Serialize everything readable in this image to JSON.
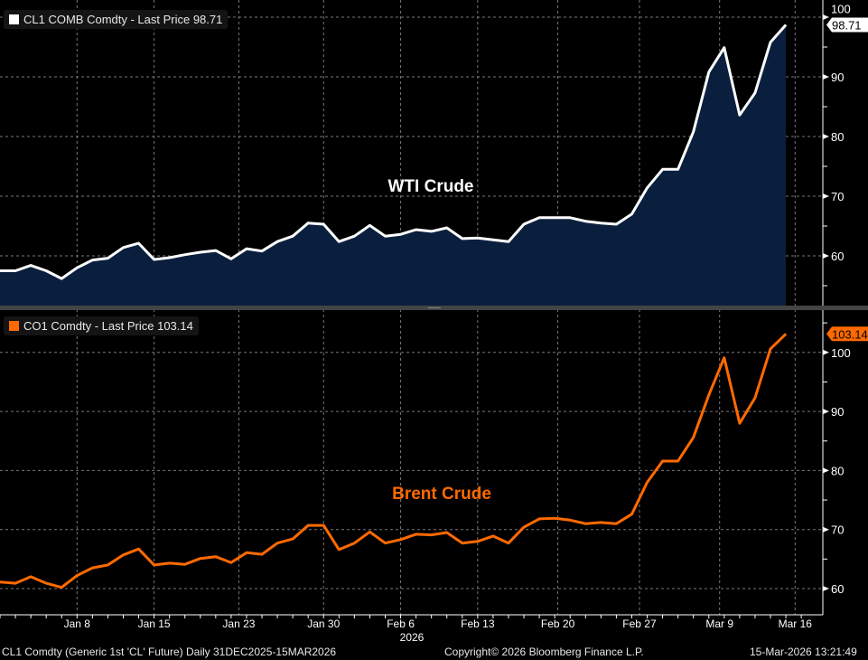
{
  "footer": {
    "left": "CL1 Comdty (Generic 1st 'CL' Future) Daily 31DEC2025-15MAR2026",
    "center": "Copyright© 2026 Bloomberg Finance L.P.",
    "right": "15-Mar-2026 13:21:49"
  },
  "colors": {
    "wti": "#ffffff",
    "wti_fill": "#0a1f3d",
    "brent": "#ff6a00",
    "grid": "#777777"
  },
  "chart_data": [
    {
      "type": "area",
      "legend": "CL1 COMB Comdty - Last Price 98.71",
      "annotation": "WTI Crude",
      "last_label": "98.71",
      "ylim": [
        52,
        102
      ],
      "yticks": [
        60,
        70,
        80,
        90,
        100
      ],
      "values": [
        57.5,
        57.5,
        58.4,
        57.5,
        56.2,
        58,
        59.3,
        59.6,
        61.4,
        62.1,
        59.4,
        59.7,
        60.2,
        60.6,
        60.9,
        59.5,
        61.2,
        60.8,
        62.4,
        63.3,
        65.5,
        65.3,
        62.4,
        63.3,
        65.1,
        63.3,
        63.6,
        64.4,
        64.1,
        64.7,
        62.9,
        63,
        62.7,
        62.4,
        65.3,
        66.4,
        66.4,
        66.4,
        65.8,
        65.5,
        65.3,
        67,
        71.4,
        74.5,
        74.5,
        80.8,
        90.8,
        94.9,
        83.6,
        87.3,
        95.8,
        98.71
      ]
    },
    {
      "type": "line",
      "legend": "CO1 Comdty - Last Price 103.14",
      "annotation": "Brent Crude",
      "last_label": "103.14",
      "ylim": [
        55,
        105
      ],
      "yticks": [
        60,
        70,
        80,
        90,
        100
      ],
      "values": [
        61.1,
        60.9,
        62,
        60.9,
        60.2,
        62.2,
        63.5,
        64,
        65.7,
        66.7,
        64,
        64.3,
        64.1,
        65.1,
        65.4,
        64.4,
        66.1,
        65.8,
        67.7,
        68.4,
        70.7,
        70.7,
        66.6,
        67.7,
        69.6,
        67.7,
        68.3,
        69.2,
        69.1,
        69.5,
        67.7,
        68,
        68.9,
        67.7,
        70.4,
        71.8,
        71.9,
        71.6,
        71,
        71.2,
        71,
        72.6,
        78,
        81.6,
        81.6,
        85.6,
        92.8,
        99.1,
        88,
        92.3,
        100.6,
        103.14
      ]
    }
  ],
  "x_axis": {
    "year": "2026",
    "ticks": [
      {
        "label": "Jan 8",
        "index": 5
      },
      {
        "label": "Jan 15",
        "index": 10
      },
      {
        "label": "Jan 23",
        "index": 15.5
      },
      {
        "label": "Jan 30",
        "index": 21
      },
      {
        "label": "Feb 6",
        "index": 26
      },
      {
        "label": "Feb 13",
        "index": 31
      },
      {
        "label": "Feb 20",
        "index": 36.2
      },
      {
        "label": "Feb 27",
        "index": 41.5
      },
      {
        "label": "Mar 9",
        "index": 46.7
      },
      {
        "label": "Mar 16",
        "index": 51.6
      }
    ]
  }
}
